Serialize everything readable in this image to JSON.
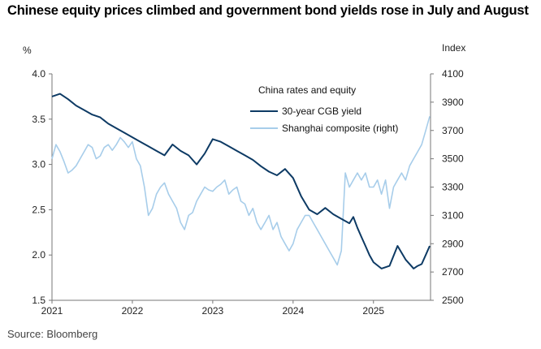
{
  "title": "Chinese equity prices climbed and government bond yields rose in July and August",
  "source": "Source: Bloomberg",
  "chart_data": {
    "type": "line",
    "legend_title": "China rates and equity",
    "ylabel_left": "%",
    "ylabel_right": "Index",
    "ylim_left": [
      1.5,
      4.0
    ],
    "ylim_right": [
      2500,
      4100
    ],
    "yticks_left": [
      "4.0",
      "3.5",
      "3.0",
      "2.5",
      "2.0",
      "1.5"
    ],
    "yticks_right": [
      "4100",
      "3900",
      "3700",
      "3500",
      "3300",
      "3100",
      "2900",
      "2700",
      "2500"
    ],
    "xlim": [
      2021.0,
      2025.71
    ],
    "xticks": [
      "2021",
      "2022",
      "2023",
      "2024",
      "2025"
    ],
    "colors": {
      "yield": "#0d3a64",
      "equity": "#a7cdea",
      "axis": "#777777"
    },
    "series": [
      {
        "name": "30-year CGB yield",
        "axis": "left",
        "x": [
          2021.0,
          2021.1,
          2021.2,
          2021.3,
          2021.4,
          2021.5,
          2021.6,
          2021.7,
          2021.8,
          2021.9,
          2022.0,
          2022.1,
          2022.2,
          2022.3,
          2022.4,
          2022.5,
          2022.6,
          2022.7,
          2022.8,
          2022.9,
          2023.0,
          2023.1,
          2023.2,
          2023.3,
          2023.4,
          2023.5,
          2023.6,
          2023.7,
          2023.8,
          2023.9,
          2024.0,
          2024.1,
          2024.2,
          2024.3,
          2024.4,
          2024.5,
          2024.6,
          2024.7,
          2024.75,
          2024.8,
          2024.85,
          2024.9,
          2024.95,
          2025.0,
          2025.1,
          2025.2,
          2025.3,
          2025.4,
          2025.5,
          2025.55,
          2025.6,
          2025.65,
          2025.7
        ],
        "y": [
          3.75,
          3.78,
          3.72,
          3.65,
          3.6,
          3.55,
          3.52,
          3.45,
          3.4,
          3.35,
          3.3,
          3.25,
          3.2,
          3.15,
          3.1,
          3.22,
          3.15,
          3.1,
          3.0,
          3.12,
          3.28,
          3.25,
          3.2,
          3.15,
          3.1,
          3.05,
          2.98,
          2.92,
          2.88,
          2.95,
          2.85,
          2.65,
          2.5,
          2.45,
          2.52,
          2.45,
          2.4,
          2.35,
          2.42,
          2.3,
          2.2,
          2.1,
          2.0,
          1.92,
          1.85,
          1.88,
          2.1,
          1.95,
          1.85,
          1.88,
          1.9,
          2.0,
          2.1
        ]
      },
      {
        "name": "Shanghai composite (right)",
        "axis": "right",
        "x": [
          2021.0,
          2021.05,
          2021.1,
          2021.15,
          2021.2,
          2021.25,
          2021.3,
          2021.35,
          2021.4,
          2021.45,
          2021.5,
          2021.55,
          2021.6,
          2021.65,
          2021.7,
          2021.75,
          2021.8,
          2021.85,
          2021.9,
          2021.95,
          2022.0,
          2022.05,
          2022.1,
          2022.15,
          2022.2,
          2022.25,
          2022.3,
          2022.35,
          2022.4,
          2022.45,
          2022.5,
          2022.55,
          2022.6,
          2022.65,
          2022.7,
          2022.75,
          2022.8,
          2022.85,
          2022.9,
          2022.95,
          2023.0,
          2023.05,
          2023.1,
          2023.15,
          2023.2,
          2023.25,
          2023.3,
          2023.35,
          2023.4,
          2023.45,
          2023.5,
          2023.55,
          2023.6,
          2023.65,
          2023.7,
          2023.75,
          2023.8,
          2023.85,
          2023.9,
          2023.95,
          2024.0,
          2024.05,
          2024.1,
          2024.15,
          2024.2,
          2024.25,
          2024.3,
          2024.35,
          2024.4,
          2024.45,
          2024.5,
          2024.55,
          2024.6,
          2024.65,
          2024.7,
          2024.75,
          2024.8,
          2024.85,
          2024.9,
          2024.95,
          2025.0,
          2025.05,
          2025.1,
          2025.15,
          2025.2,
          2025.25,
          2025.3,
          2025.35,
          2025.4,
          2025.45,
          2025.5,
          2025.55,
          2025.6,
          2025.65,
          2025.7
        ],
        "y": [
          3500,
          3600,
          3550,
          3480,
          3400,
          3420,
          3450,
          3500,
          3550,
          3600,
          3580,
          3500,
          3520,
          3580,
          3600,
          3560,
          3600,
          3650,
          3620,
          3580,
          3620,
          3500,
          3450,
          3300,
          3100,
          3150,
          3250,
          3300,
          3330,
          3250,
          3200,
          3150,
          3050,
          3000,
          3100,
          3120,
          3200,
          3250,
          3300,
          3280,
          3270,
          3300,
          3320,
          3350,
          3250,
          3280,
          3300,
          3200,
          3180,
          3100,
          3150,
          3050,
          3000,
          3050,
          3100,
          3000,
          3050,
          2950,
          2900,
          2850,
          2900,
          3000,
          3050,
          3100,
          3100,
          3050,
          3000,
          2950,
          2900,
          2850,
          2800,
          2750,
          2850,
          3400,
          3300,
          3350,
          3400,
          3350,
          3400,
          3300,
          3300,
          3350,
          3250,
          3350,
          3150,
          3300,
          3350,
          3400,
          3350,
          3450,
          3500,
          3550,
          3600,
          3700,
          3800
        ]
      }
    ]
  }
}
